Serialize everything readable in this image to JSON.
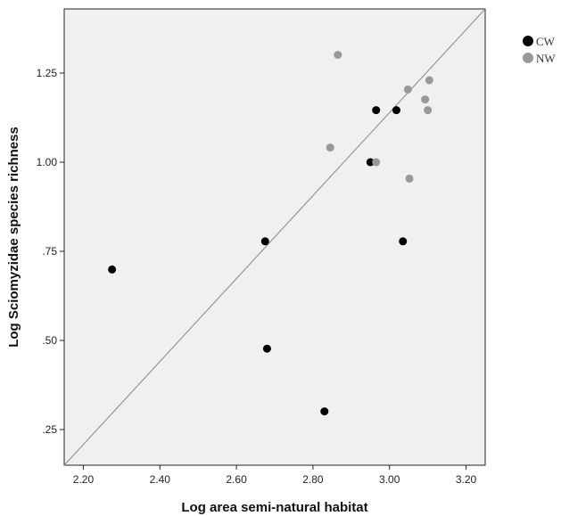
{
  "chart_data": {
    "type": "scatter",
    "title": "",
    "xlabel": "Log area semi-natural habitat",
    "ylabel": "Log Sciomyzidae species richness",
    "xlim": [
      2.15,
      3.25
    ],
    "ylim": [
      0.15,
      1.43
    ],
    "x_ticks": [
      {
        "value": 2.2,
        "label": "2.20"
      },
      {
        "value": 2.4,
        "label": "2.40"
      },
      {
        "value": 2.6,
        "label": "2.60"
      },
      {
        "value": 2.8,
        "label": "2.80"
      },
      {
        "value": 3.0,
        "label": "3.00"
      },
      {
        "value": 3.2,
        "label": "3.20"
      }
    ],
    "y_ticks": [
      {
        "value": 0.25,
        "label": ".25"
      },
      {
        "value": 0.5,
        "label": ".50"
      },
      {
        "value": 0.75,
        "label": ".75"
      },
      {
        "value": 1.0,
        "label": "1.00"
      },
      {
        "value": 1.25,
        "label": "1.25"
      }
    ],
    "grid": false,
    "legend_position": "right",
    "reference_line": {
      "from": [
        2.15,
        0.15
      ],
      "to": [
        3.25,
        1.43
      ]
    },
    "series": [
      {
        "name": "CW",
        "color": "#000000",
        "points": [
          {
            "x": 2.275,
            "y": 0.699
          },
          {
            "x": 2.675,
            "y": 0.778
          },
          {
            "x": 2.68,
            "y": 0.477
          },
          {
            "x": 2.83,
            "y": 0.301
          },
          {
            "x": 2.95,
            "y": 1.0
          },
          {
            "x": 2.965,
            "y": 1.146
          },
          {
            "x": 3.018,
            "y": 1.146
          },
          {
            "x": 3.035,
            "y": 0.778
          }
        ]
      },
      {
        "name": "NW",
        "color": "#999999",
        "points": [
          {
            "x": 2.845,
            "y": 1.041
          },
          {
            "x": 2.865,
            "y": 1.301
          },
          {
            "x": 2.965,
            "y": 1.0
          },
          {
            "x": 3.048,
            "y": 1.204
          },
          {
            "x": 3.052,
            "y": 0.954
          },
          {
            "x": 3.093,
            "y": 1.176
          },
          {
            "x": 3.1,
            "y": 1.146
          },
          {
            "x": 3.104,
            "y": 1.23
          }
        ]
      }
    ]
  }
}
